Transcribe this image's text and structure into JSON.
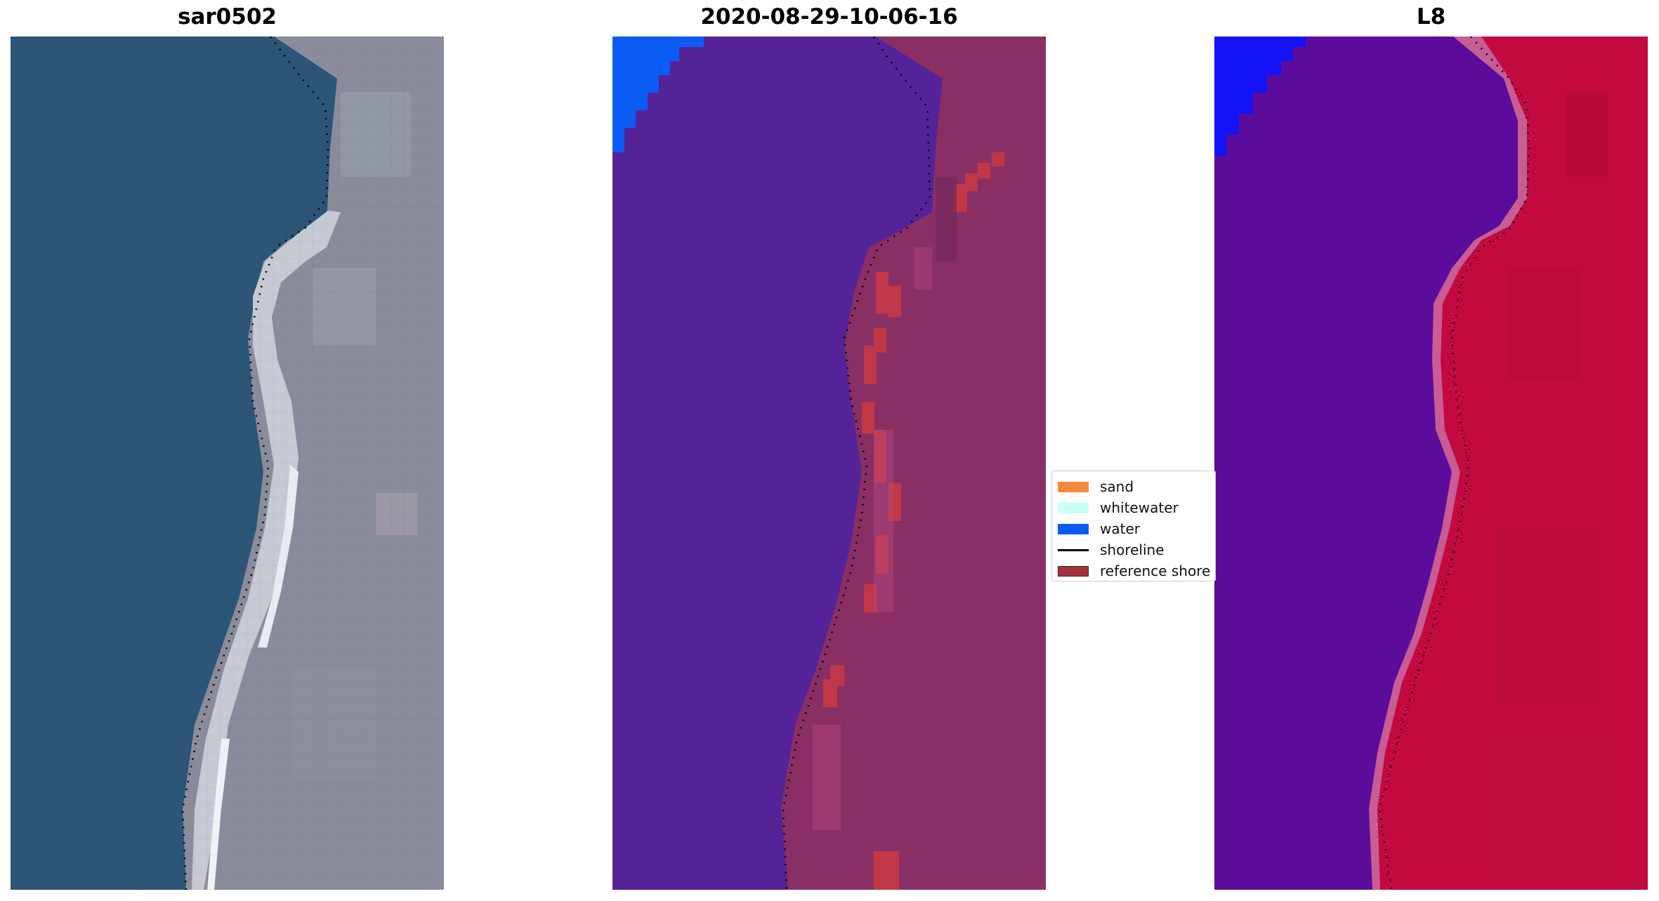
{
  "panels": [
    {
      "title": "sar0502",
      "kind": "rgb-satellite-image"
    },
    {
      "title": "2020-08-29-10-06-16",
      "kind": "classification-overlay"
    },
    {
      "title": "L8",
      "kind": "index-map"
    }
  ],
  "legend": {
    "items": [
      {
        "label": "sand",
        "type": "patch",
        "color": "#f58c3c"
      },
      {
        "label": "whitewater",
        "type": "patch",
        "color": "#c8fff8"
      },
      {
        "label": "water",
        "type": "patch",
        "color": "#0a5cf5"
      },
      {
        "label": "shoreline",
        "type": "line",
        "color": "#000000"
      },
      {
        "label": "reference shore",
        "type": "patch",
        "color": "#a0343a"
      }
    ]
  },
  "colors": {
    "rgb_sea": "#2c5577",
    "rgb_land": "#8a8c9c",
    "rgb_beach": "#c6cad2",
    "class_water": "#542398",
    "class_land": "#8a2f64",
    "class_blue": "#0a5cf5",
    "class_ref": "#c03848",
    "index_water": "#5c0c9a",
    "index_land": "#c20a40",
    "index_blue": "#1212f5"
  }
}
